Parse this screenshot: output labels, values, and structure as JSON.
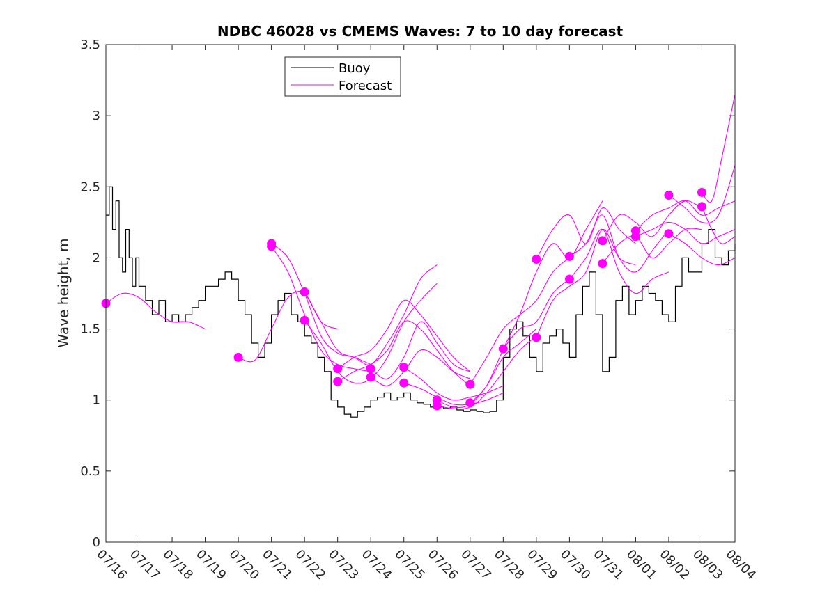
{
  "chart_data": {
    "type": "line",
    "title": "NDBC 46028 vs CMEMS Waves: 7 to 10 day forecast",
    "xlabel": "",
    "ylabel": "Wave height, m",
    "xlim": [
      0,
      19
    ],
    "ylim": [
      0,
      3.5
    ],
    "x_ticks": [
      0,
      1,
      2,
      3,
      4,
      5,
      6,
      7,
      8,
      9,
      10,
      11,
      12,
      13,
      14,
      15,
      16,
      17,
      18,
      19
    ],
    "x_tick_labels": [
      "07/16",
      "07/17",
      "07/18",
      "07/19",
      "07/20",
      "07/21",
      "07/22",
      "07/23",
      "07/24",
      "07/25",
      "07/26",
      "07/27",
      "07/28",
      "07/29",
      "07/30",
      "07/31",
      "08/01",
      "08/02",
      "08/03",
      "08/04"
    ],
    "y_ticks": [
      0,
      0.5,
      1,
      1.5,
      2,
      2.5,
      3,
      3.5
    ],
    "y_tick_labels": [
      "0",
      "0.5",
      "1",
      "1.5",
      "2",
      "2.5",
      "3",
      "3.5"
    ],
    "grid": false,
    "legend": {
      "position": "top-center",
      "entries": [
        {
          "label": "Buoy",
          "color": "#000000"
        },
        {
          "label": "Forecast",
          "color": "#ff00ff"
        }
      ]
    },
    "buoy_color": "#000000",
    "forecast_color": "#ff00ff",
    "buoy": {
      "name": "Buoy",
      "points": [
        [
          0.0,
          2.3
        ],
        [
          0.1,
          2.5
        ],
        [
          0.2,
          2.2
        ],
        [
          0.3,
          2.4
        ],
        [
          0.4,
          2.0
        ],
        [
          0.5,
          1.9
        ],
        [
          0.6,
          2.2
        ],
        [
          0.7,
          2.0
        ],
        [
          0.8,
          1.8
        ],
        [
          0.9,
          2.0
        ],
        [
          1.0,
          1.8
        ],
        [
          1.1,
          1.8
        ],
        [
          1.2,
          1.7
        ],
        [
          1.4,
          1.6
        ],
        [
          1.6,
          1.7
        ],
        [
          1.8,
          1.55
        ],
        [
          2.0,
          1.6
        ],
        [
          2.2,
          1.55
        ],
        [
          2.4,
          1.6
        ],
        [
          2.6,
          1.65
        ],
        [
          2.8,
          1.7
        ],
        [
          3.0,
          1.8
        ],
        [
          3.2,
          1.8
        ],
        [
          3.4,
          1.85
        ],
        [
          3.6,
          1.9
        ],
        [
          3.8,
          1.85
        ],
        [
          4.0,
          1.7
        ],
        [
          4.2,
          1.6
        ],
        [
          4.4,
          1.4
        ],
        [
          4.6,
          1.3
        ],
        [
          4.8,
          1.4
        ],
        [
          5.0,
          1.6
        ],
        [
          5.2,
          1.7
        ],
        [
          5.4,
          1.75
        ],
        [
          5.6,
          1.6
        ],
        [
          5.8,
          1.55
        ],
        [
          6.0,
          1.45
        ],
        [
          6.2,
          1.4
        ],
        [
          6.4,
          1.3
        ],
        [
          6.6,
          1.2
        ],
        [
          6.8,
          1.0
        ],
        [
          7.0,
          0.95
        ],
        [
          7.2,
          0.9
        ],
        [
          7.4,
          0.88
        ],
        [
          7.6,
          0.92
        ],
        [
          7.8,
          0.95
        ],
        [
          8.0,
          1.0
        ],
        [
          8.2,
          1.02
        ],
        [
          8.4,
          1.05
        ],
        [
          8.6,
          1.0
        ],
        [
          8.8,
          1.02
        ],
        [
          9.0,
          1.05
        ],
        [
          9.2,
          1.0
        ],
        [
          9.4,
          0.98
        ],
        [
          9.6,
          0.97
        ],
        [
          9.8,
          0.95
        ],
        [
          10.0,
          0.95
        ],
        [
          10.2,
          0.94
        ],
        [
          10.4,
          0.95
        ],
        [
          10.6,
          0.93
        ],
        [
          10.8,
          0.92
        ],
        [
          11.0,
          0.93
        ],
        [
          11.2,
          0.92
        ],
        [
          11.4,
          0.91
        ],
        [
          11.6,
          0.92
        ],
        [
          11.8,
          1.0
        ],
        [
          12.0,
          1.3
        ],
        [
          12.2,
          1.5
        ],
        [
          12.4,
          1.55
        ],
        [
          12.6,
          1.45
        ],
        [
          12.8,
          1.3
        ],
        [
          13.0,
          1.2
        ],
        [
          13.2,
          1.4
        ],
        [
          13.4,
          1.45
        ],
        [
          13.6,
          1.5
        ],
        [
          13.8,
          1.4
        ],
        [
          14.0,
          1.3
        ],
        [
          14.2,
          1.6
        ],
        [
          14.4,
          1.8
        ],
        [
          14.6,
          1.9
        ],
        [
          14.8,
          1.6
        ],
        [
          15.0,
          1.2
        ],
        [
          15.2,
          1.3
        ],
        [
          15.4,
          1.7
        ],
        [
          15.6,
          1.8
        ],
        [
          15.8,
          1.6
        ],
        [
          16.0,
          1.7
        ],
        [
          16.2,
          1.8
        ],
        [
          16.4,
          1.75
        ],
        [
          16.6,
          1.7
        ],
        [
          16.8,
          1.6
        ],
        [
          17.0,
          1.55
        ],
        [
          17.2,
          1.8
        ],
        [
          17.4,
          2.0
        ],
        [
          17.6,
          1.9
        ],
        [
          17.8,
          1.9
        ],
        [
          18.0,
          2.1
        ],
        [
          18.2,
          2.2
        ],
        [
          18.4,
          2.0
        ],
        [
          18.6,
          1.95
        ],
        [
          18.8,
          2.05
        ],
        [
          19.0,
          2.1
        ]
      ]
    },
    "forecasts": [
      {
        "name": "Forecast",
        "x": [
          0.0,
          0.5,
          1.0,
          1.5,
          2.0,
          2.5,
          3.0
        ],
        "y": [
          1.68,
          1.75,
          1.72,
          1.62,
          1.55,
          1.55,
          1.5
        ]
      },
      {
        "name": "Forecast",
        "x": [
          4.0,
          4.5,
          5.0,
          5.5,
          6.0,
          6.5,
          7.0
        ],
        "y": [
          1.3,
          1.28,
          1.5,
          1.72,
          1.75,
          1.55,
          1.5
        ]
      },
      {
        "name": "Forecast",
        "x": [
          5.0,
          5.5,
          6.0,
          6.5,
          7.0,
          7.5,
          8.0
        ],
        "y": [
          2.1,
          2.0,
          1.75,
          1.45,
          1.33,
          1.3,
          1.25
        ]
      },
      {
        "name": "Forecast",
        "x": [
          5.0,
          5.5,
          6.0,
          6.5,
          7.0,
          7.5,
          8.0
        ],
        "y": [
          2.08,
          1.9,
          1.6,
          1.35,
          1.25,
          1.22,
          1.2
        ]
      },
      {
        "name": "Forecast",
        "x": [
          6.0,
          6.5,
          7.0,
          7.5,
          8.0,
          8.5,
          9.0,
          9.5,
          10.0
        ],
        "y": [
          1.76,
          1.55,
          1.35,
          1.3,
          1.25,
          1.4,
          1.6,
          1.85,
          1.95
        ]
      },
      {
        "name": "Forecast",
        "x": [
          6.0,
          6.5,
          7.0,
          7.5,
          8.0,
          8.5,
          9.0,
          9.5,
          10.0
        ],
        "y": [
          1.56,
          1.4,
          1.2,
          1.12,
          1.15,
          1.3,
          1.55,
          1.7,
          1.82
        ]
      },
      {
        "name": "Forecast",
        "x": [
          7.0,
          7.5,
          8.0,
          8.5,
          9.0,
          9.5,
          10.0,
          10.5,
          11.0
        ],
        "y": [
          1.22,
          1.3,
          1.35,
          1.5,
          1.7,
          1.6,
          1.45,
          1.3,
          1.2
        ]
      },
      {
        "name": "Forecast",
        "x": [
          7.0,
          7.5,
          8.0,
          8.5,
          9.0,
          9.5,
          10.0,
          10.5,
          11.0
        ],
        "y": [
          1.13,
          1.2,
          1.25,
          1.35,
          1.55,
          1.5,
          1.35,
          1.2,
          1.1
        ]
      },
      {
        "name": "Forecast",
        "x": [
          8.0,
          8.5,
          9.0,
          9.5,
          10.0,
          10.5,
          11.0
        ],
        "y": [
          1.22,
          1.15,
          1.3,
          1.55,
          1.4,
          1.25,
          1.2
        ]
      },
      {
        "name": "Forecast",
        "x": [
          8.0,
          8.5,
          9.0,
          9.5,
          10.0,
          10.5,
          11.0
        ],
        "y": [
          1.16,
          1.1,
          1.2,
          1.35,
          1.3,
          1.2,
          1.15
        ]
      },
      {
        "name": "Forecast",
        "x": [
          9.0,
          9.5,
          10.0,
          10.5,
          11.0,
          11.5,
          12.0
        ],
        "y": [
          1.23,
          1.15,
          1.05,
          1.0,
          1.02,
          1.05,
          1.1
        ]
      },
      {
        "name": "Forecast",
        "x": [
          9.0,
          9.5,
          10.0,
          10.5,
          11.0,
          11.5,
          12.0
        ],
        "y": [
          1.12,
          1.08,
          1.02,
          0.97,
          0.97,
          1.0,
          1.05
        ]
      },
      {
        "name": "Forecast",
        "x": [
          10.0,
          10.5,
          11.0,
          11.5,
          12.0,
          12.5,
          13.0
        ],
        "y": [
          1.0,
          0.95,
          0.97,
          1.1,
          1.3,
          1.4,
          1.5
        ]
      },
      {
        "name": "Forecast",
        "x": [
          10.0,
          10.5,
          11.0,
          11.5,
          12.0,
          12.5,
          13.0
        ],
        "y": [
          0.96,
          0.94,
          0.95,
          1.05,
          1.2,
          1.35,
          1.45
        ]
      },
      {
        "name": "Forecast",
        "x": [
          11.0,
          11.5,
          12.0,
          12.5,
          13.0,
          13.5,
          14.0
        ],
        "y": [
          1.11,
          1.3,
          1.5,
          1.6,
          1.7,
          1.9,
          2.0
        ]
      },
      {
        "name": "Forecast",
        "x": [
          11.0,
          11.5,
          12.0,
          12.5,
          13.0,
          13.5,
          14.0
        ],
        "y": [
          0.98,
          1.1,
          1.35,
          1.5,
          1.55,
          1.75,
          1.85
        ]
      },
      {
        "name": "Forecast",
        "x": [
          12.0,
          12.5,
          13.0,
          13.5,
          14.0,
          14.5,
          15.0
        ],
        "y": [
          1.36,
          1.6,
          1.9,
          2.1,
          2.0,
          2.2,
          2.4
        ]
      },
      {
        "name": "Forecast",
        "x": [
          13.0,
          13.5,
          14.0,
          14.5,
          15.0,
          15.5,
          16.0
        ],
        "y": [
          1.99,
          2.2,
          2.3,
          2.1,
          2.35,
          2.2,
          2.1
        ]
      },
      {
        "name": "Forecast",
        "x": [
          13.0,
          13.5,
          14.0,
          14.5,
          15.0,
          15.5,
          16.0
        ],
        "y": [
          1.44,
          1.7,
          1.8,
          1.9,
          2.2,
          2.0,
          1.95
        ]
      },
      {
        "name": "Forecast",
        "x": [
          14.0,
          14.5,
          15.0,
          15.5,
          16.0,
          16.5,
          17.0
        ],
        "y": [
          2.01,
          2.1,
          2.3,
          2.0,
          1.9,
          2.05,
          2.2
        ]
      },
      {
        "name": "Forecast",
        "x": [
          14.0,
          14.5,
          15.0,
          15.5,
          16.0,
          16.5,
          17.0
        ],
        "y": [
          1.85,
          2.0,
          2.2,
          1.9,
          1.75,
          1.85,
          1.9
        ]
      },
      {
        "name": "Forecast",
        "x": [
          15.0,
          15.5,
          16.0,
          16.5,
          17.0,
          17.5,
          18.0
        ],
        "y": [
          2.12,
          2.3,
          2.25,
          2.15,
          2.3,
          2.4,
          2.35
        ]
      },
      {
        "name": "Forecast",
        "x": [
          15.0,
          15.5,
          16.0,
          16.5,
          17.0,
          17.5,
          18.0
        ],
        "y": [
          1.96,
          2.1,
          2.15,
          2.0,
          2.1,
          2.2,
          2.2
        ]
      },
      {
        "name": "Forecast",
        "x": [
          16.0,
          16.5,
          17.0,
          17.5,
          18.0,
          18.5,
          19.0
        ],
        "y": [
          2.19,
          2.3,
          2.35,
          2.4,
          2.3,
          2.35,
          2.4
        ]
      },
      {
        "name": "Forecast",
        "x": [
          16.0,
          16.5,
          17.0,
          17.5,
          18.0,
          18.5,
          19.0
        ],
        "y": [
          2.15,
          2.2,
          2.25,
          2.2,
          2.1,
          2.15,
          2.2
        ]
      },
      {
        "name": "Forecast",
        "x": [
          17.0,
          17.5,
          18.0,
          18.5,
          19.0
        ],
        "y": [
          2.44,
          2.35,
          2.25,
          2.3,
          2.65
        ]
      },
      {
        "name": "Forecast",
        "x": [
          17.0,
          17.5,
          18.0,
          18.5,
          19.0
        ],
        "y": [
          2.17,
          2.1,
          2.0,
          1.95,
          2.0
        ]
      },
      {
        "name": "Forecast",
        "x": [
          18.0,
          18.3,
          18.6,
          19.0
        ],
        "y": [
          2.46,
          2.4,
          2.7,
          3.15
        ]
      },
      {
        "name": "Forecast",
        "x": [
          18.0,
          18.3,
          18.6,
          19.0
        ],
        "y": [
          2.36,
          2.2,
          2.1,
          2.15
        ]
      }
    ]
  }
}
